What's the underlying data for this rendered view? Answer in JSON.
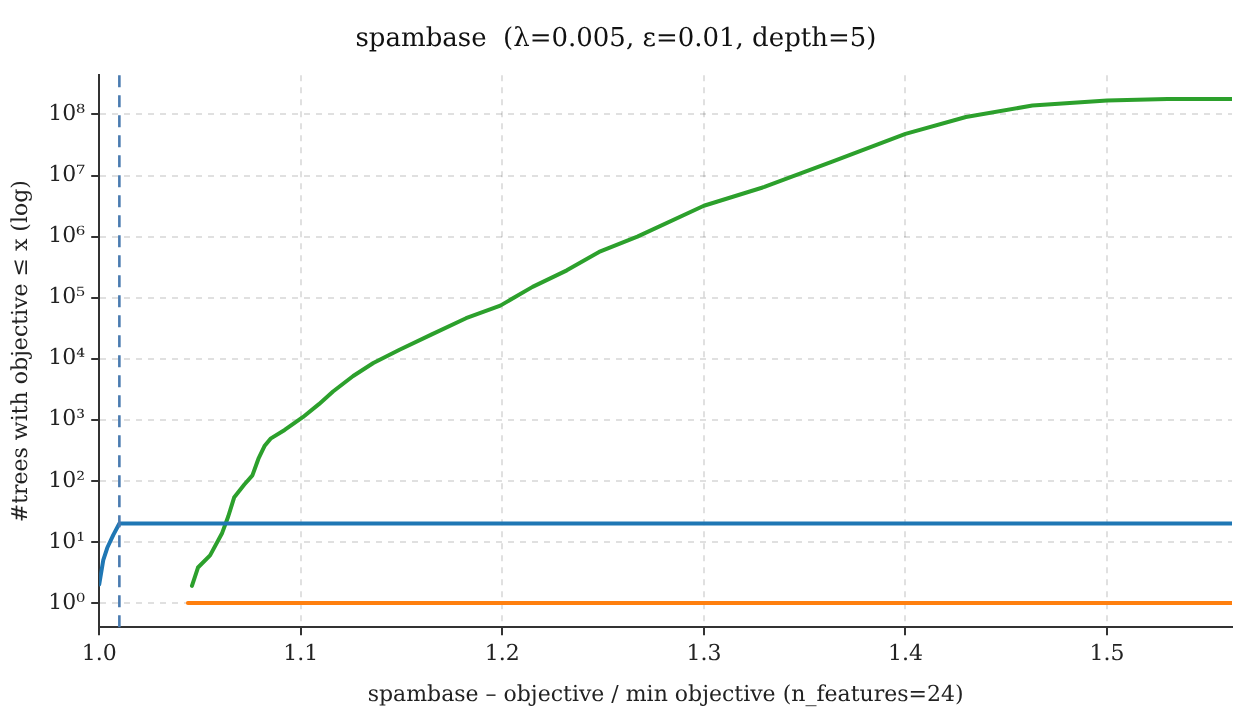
{
  "chart_data": {
    "type": "line",
    "title": "spambase  (λ=0.005, ε=0.01, depth=5)",
    "xlabel": "spambase – objective / min objective (n_features=24)",
    "ylabel": "#trees with objective ≤ x (log)",
    "log": "y",
    "grid": true,
    "legend": false,
    "marker": "none",
    "line_style": "solid",
    "xlim": [
      1.0,
      1.562
    ],
    "xticks": [
      {
        "value": 1.0,
        "label": "1.0"
      },
      1.1,
      1.2,
      1.3,
      1.4,
      1.5
    ],
    "ylim": [
      0.4,
      440000000
    ],
    "yticks": [
      {
        "value": 1,
        "label": "10⁰"
      },
      {
        "value": 10,
        "label": "10¹"
      },
      {
        "value": 100,
        "label": "10²"
      },
      {
        "value": 1000,
        "label": "10³"
      },
      {
        "value": 10000,
        "label": "10⁴"
      },
      {
        "value": 100000,
        "label": "10⁵"
      },
      {
        "value": 1000000,
        "label": "10⁶"
      },
      {
        "value": 10000000,
        "label": "10⁷"
      },
      {
        "value": 100000000,
        "label": "10⁸"
      }
    ],
    "ref_lines": [
      {
        "axis": "x",
        "value": 1.01,
        "color": "#4a7bb0",
        "line_style": "dashed"
      }
    ],
    "series": [
      {
        "color": "#1f77b4",
        "x": [
          1.0,
          1.002,
          1.004,
          1.007,
          1.01,
          1.562
        ],
        "values": [
          2,
          5,
          8,
          13,
          20,
          20
        ]
      },
      {
        "color": "#ff7f0e",
        "x": [
          1.044,
          1.562
        ],
        "values": [
          1,
          1
        ]
      },
      {
        "color": "#2ca02c",
        "x": [
          1.046,
          1.049,
          1.055,
          1.061,
          1.064,
          1.067,
          1.072,
          1.076,
          1.079,
          1.082,
          1.085,
          1.092,
          1.101,
          1.109,
          1.116,
          1.126,
          1.136,
          1.149,
          1.165,
          1.182,
          1.199,
          1.215,
          1.232,
          1.248,
          1.267,
          1.3,
          1.33,
          1.364,
          1.4,
          1.43,
          1.463,
          1.5,
          1.53,
          1.562
        ],
        "values": [
          1.9,
          3.8,
          6,
          14,
          26,
          54,
          87,
          123,
          230,
          370,
          490,
          680,
          1100,
          1800,
          2900,
          5200,
          8500,
          14000,
          25000,
          46000,
          74000,
          150000,
          280000,
          560000,
          1000000,
          3200000,
          6500000,
          17000000,
          48000000,
          91000000,
          140000000,
          170000000,
          180000000,
          180000000
        ]
      }
    ]
  }
}
